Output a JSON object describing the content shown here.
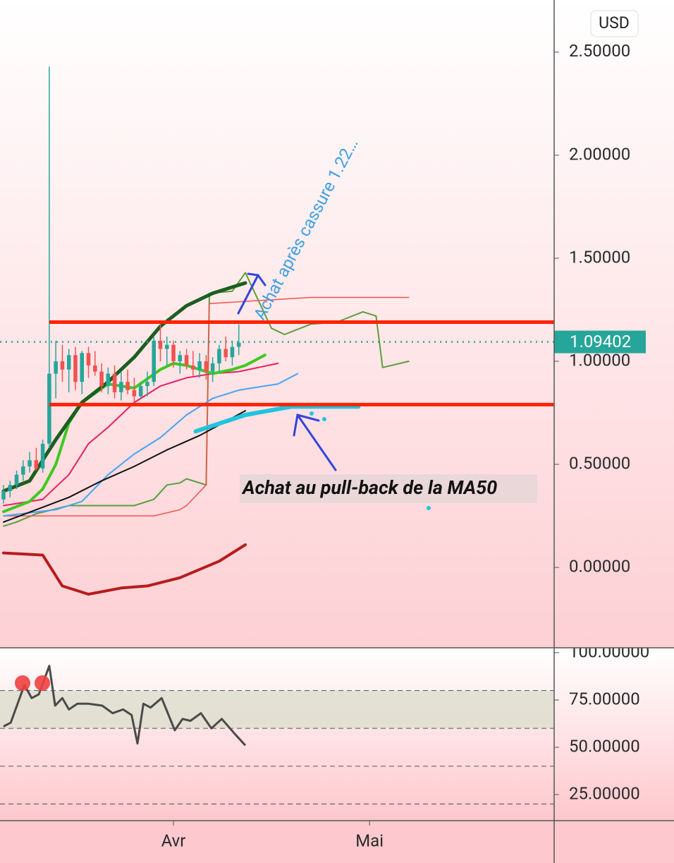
{
  "currency": "USD",
  "chart_data": [
    {
      "type": "candlestick",
      "xlim": [
        -0.54,
        84.25
      ],
      "ylim": [
        -0.39,
        2.753
      ],
      "yticks": [
        {
          "value": 0,
          "label": "0.00000"
        },
        {
          "value": 0.5,
          "label": "0.50000"
        },
        {
          "value": 1,
          "label": "1.00000"
        },
        {
          "value": 1.5,
          "label": "1.50000"
        },
        {
          "value": 2,
          "label": "2.00000"
        },
        {
          "value": 2.5,
          "label": "2.50000"
        }
      ],
      "xticks": [
        {
          "value": 26,
          "label": "Avr"
        },
        {
          "value": 56,
          "label": "Mai"
        }
      ],
      "up_color": "#26a69a",
      "down_color": "#ef5350",
      "open": [
        0.33,
        0.37,
        0.4,
        0.45,
        0.49,
        0.52,
        0.48,
        0.6,
        0.94,
        1.0,
        0.96,
        1.03,
        0.9,
        1.04,
        0.98,
        0.95,
        0.88,
        0.94,
        0.85,
        0.9,
        0.86,
        0.83,
        0.88,
        0.9,
        1.1,
        1.06,
        1.08,
        1.0,
        1.03,
        0.98,
        0.96,
        1.0,
        0.95,
        0.99,
        1.06,
        1.02,
        1.07
      ],
      "high": [
        0.4,
        0.42,
        0.47,
        0.52,
        0.56,
        0.58,
        0.62,
        2.43,
        1.1,
        1.08,
        1.06,
        1.07,
        1.05,
        1.07,
        1.05,
        0.99,
        0.97,
        0.98,
        0.95,
        0.96,
        0.92,
        0.9,
        0.95,
        1.12,
        1.18,
        1.12,
        1.1,
        1.05,
        1.06,
        1.05,
        1.04,
        1.03,
        1.02,
        1.08,
        1.12,
        1.1,
        1.18
      ],
      "low": [
        0.31,
        0.34,
        0.38,
        0.42,
        0.46,
        0.47,
        0.46,
        0.58,
        0.82,
        0.9,
        0.85,
        0.86,
        0.84,
        0.92,
        0.93,
        0.85,
        0.84,
        0.82,
        0.81,
        0.84,
        0.8,
        0.82,
        0.83,
        0.88,
        1.0,
        0.98,
        0.97,
        0.94,
        0.96,
        0.93,
        0.92,
        0.91,
        0.9,
        0.95,
        1.0,
        0.98,
        1.03
      ],
      "close": [
        0.37,
        0.4,
        0.45,
        0.49,
        0.52,
        0.48,
        0.6,
        0.94,
        1.0,
        0.96,
        1.03,
        0.9,
        1.04,
        0.98,
        0.95,
        0.88,
        0.94,
        0.85,
        0.9,
        0.86,
        0.83,
        0.88,
        0.9,
        1.1,
        1.06,
        1.08,
        1.0,
        1.03,
        0.98,
        0.96,
        1.0,
        0.95,
        0.99,
        1.06,
        1.02,
        1.07,
        1.09
      ],
      "series": [
        {
          "color": "#5a9e3a",
          "width": 2,
          "x": [
            0,
            2,
            5,
            10,
            15,
            20,
            23,
            25,
            27,
            28,
            31,
            31.5,
            35,
            37,
            41,
            43,
            47,
            51,
            55,
            57,
            58,
            62
          ],
          "values": [
            0.2,
            0.22,
            0.26,
            0.3,
            0.3,
            0.3,
            0.33,
            0.4,
            0.41,
            0.43,
            0.4,
            1.33,
            1.34,
            1.43,
            1.16,
            1.13,
            1.18,
            1.19,
            1.24,
            1.22,
            0.97,
            1.0
          ]
        },
        {
          "color": "#ef5350",
          "width": 1.5,
          "x": [
            0,
            23,
            27,
            28,
            31,
            31.5,
            47,
            62
          ],
          "values": [
            0.25,
            0.25,
            0.28,
            0.3,
            0.4,
            1.28,
            1.31,
            1.31
          ]
        },
        {
          "color": "#42a5f5",
          "width": 2,
          "x": [
            0,
            8,
            12,
            16,
            20,
            24,
            28,
            32,
            36,
            42,
            45
          ],
          "values": [
            0.25,
            0.28,
            0.32,
            0.45,
            0.55,
            0.63,
            0.74,
            0.82,
            0.86,
            0.89,
            0.94
          ]
        },
        {
          "color": "#111111",
          "width": 2,
          "x": [
            0,
            5,
            10,
            15,
            20,
            25,
            30,
            37
          ],
          "values": [
            0.22,
            0.28,
            0.34,
            0.42,
            0.49,
            0.57,
            0.64,
            0.76
          ]
        },
        {
          "color": "#e91e63",
          "width": 2,
          "x": [
            0,
            6,
            10,
            13,
            16,
            20,
            24,
            28,
            32,
            36,
            42
          ],
          "values": [
            0.3,
            0.33,
            0.45,
            0.6,
            0.68,
            0.8,
            0.88,
            0.92,
            0.94,
            0.95,
            0.99
          ]
        },
        {
          "color": "#3ec91f",
          "width": 4,
          "x": [
            0,
            4,
            6,
            8,
            10,
            12,
            16,
            20,
            24,
            26,
            28,
            32,
            35,
            37,
            40
          ],
          "values": [
            0.27,
            0.32,
            0.38,
            0.5,
            0.7,
            0.8,
            0.89,
            0.87,
            0.96,
            0.99,
            0.98,
            0.94,
            0.96,
            0.98,
            1.03
          ]
        },
        {
          "color": "#1b5e20",
          "width": 5,
          "x": [
            0,
            4,
            8,
            12,
            16,
            20,
            24,
            28,
            32,
            37
          ],
          "values": [
            0.37,
            0.42,
            0.62,
            0.8,
            0.9,
            1.02,
            1.17,
            1.27,
            1.33,
            1.38
          ]
        },
        {
          "color": "#b71c1c",
          "width": 4,
          "x": [
            0,
            6,
            9,
            13,
            18,
            22,
            27,
            33,
            37
          ],
          "values": [
            0.07,
            0.06,
            -0.09,
            -0.13,
            -0.1,
            -0.09,
            -0.05,
            0.03,
            0.11
          ]
        },
        {
          "color": "#20c4dc",
          "width": 6,
          "x": [
            29.4,
            37,
            44,
            54.3
          ],
          "values": [
            0.66,
            0.74,
            0.78,
            0.78
          ]
        }
      ],
      "levels": [
        {
          "value": 1.19,
          "color": "#ff2200"
        },
        {
          "value": 0.79,
          "color": "#ff2200"
        }
      ],
      "last_price": 1.09402,
      "last_price_color": "#26a69a",
      "annotations": [
        "Achat après cassure 1.22…",
        "Achat au pull-back de la MA50"
      ]
    },
    {
      "type": "line",
      "xlim": [
        -0.54,
        84.25
      ],
      "ylim": [
        11.2,
        102.6
      ],
      "yticks": [
        {
          "value": 25,
          "label": "25.00000"
        },
        {
          "value": 50,
          "label": "50.00000"
        },
        {
          "value": 75,
          "label": "75.00000"
        },
        {
          "value": 100,
          "label": "100.00000"
        }
      ],
      "levels": [
        80,
        60,
        40,
        20
      ],
      "band": [
        60,
        80
      ],
      "color": "#4a4a4a",
      "x": [
        0,
        1.1,
        3.2,
        4.3,
        5.4,
        7,
        7.9,
        9,
        10,
        11.3,
        13,
        15.1,
        16.7,
        18.3,
        19.6,
        20.5,
        21.4,
        22.5,
        24.2,
        26.2,
        27.4,
        28.6,
        30.2,
        31.8,
        33.4,
        35.4,
        37
      ],
      "values": [
        61,
        63,
        83,
        76,
        78,
        93,
        72,
        76,
        70,
        73,
        73,
        72,
        68,
        70,
        67,
        52,
        73,
        71,
        76,
        59,
        65,
        64,
        68,
        60,
        65,
        57,
        51
      ]
    }
  ]
}
